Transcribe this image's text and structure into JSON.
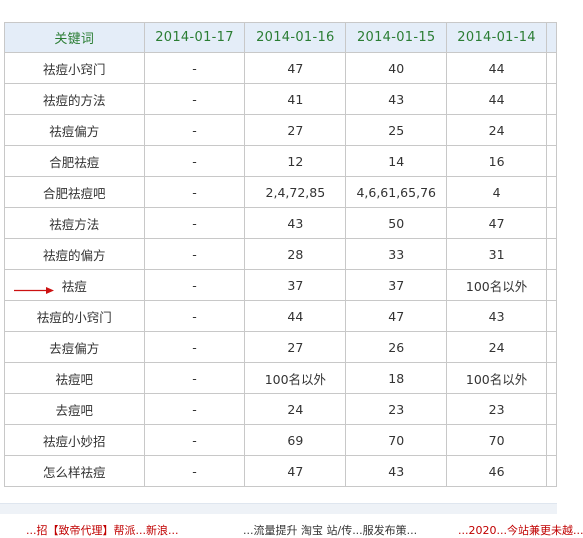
{
  "table": {
    "headers": [
      "关键词",
      "2014-01-17",
      "2014-01-16",
      "2014-01-15",
      "2014-01-14"
    ],
    "rows": [
      [
        "祛痘小窍门",
        "-",
        "47",
        "40",
        "44"
      ],
      [
        "祛痘的方法",
        "-",
        "41",
        "43",
        "44"
      ],
      [
        "祛痘偏方",
        "-",
        "27",
        "25",
        "24"
      ],
      [
        "合肥祛痘",
        "-",
        "12",
        "14",
        "16"
      ],
      [
        "合肥祛痘吧",
        "-",
        "2,4,72,85",
        "4,6,61,65,76",
        "4"
      ],
      [
        "祛痘方法",
        "-",
        "43",
        "50",
        "47"
      ],
      [
        "祛痘的偏方",
        "-",
        "28",
        "33",
        "31"
      ],
      [
        "祛痘",
        "-",
        "37",
        "37",
        "100名以外"
      ],
      [
        "祛痘的小窍门",
        "-",
        "44",
        "47",
        "43"
      ],
      [
        "去痘偏方",
        "-",
        "27",
        "26",
        "24"
      ],
      [
        "祛痘吧",
        "-",
        "100名以外",
        "18",
        "100名以外"
      ],
      [
        "去痘吧",
        "-",
        "24",
        "23",
        "23"
      ],
      [
        "祛痘小妙招",
        "-",
        "69",
        "70",
        "70"
      ],
      [
        "怎么样祛痘",
        "-",
        "47",
        "43",
        "46"
      ]
    ]
  },
  "annotation": {
    "arrow_target_row": 7,
    "arrow_color": "#cc1111"
  },
  "footer": {
    "left": "...招【致帝代理】帮派...新浪...",
    "middle": "...流量提升 淘宝 站/传...服发布策...",
    "right": "...2020...今站兼更未越..."
  },
  "colors": {
    "header_bg": "#e4edf8",
    "header_text": "#2a7d33",
    "border": "#c8c8c8",
    "footer_red": "#c00000"
  }
}
